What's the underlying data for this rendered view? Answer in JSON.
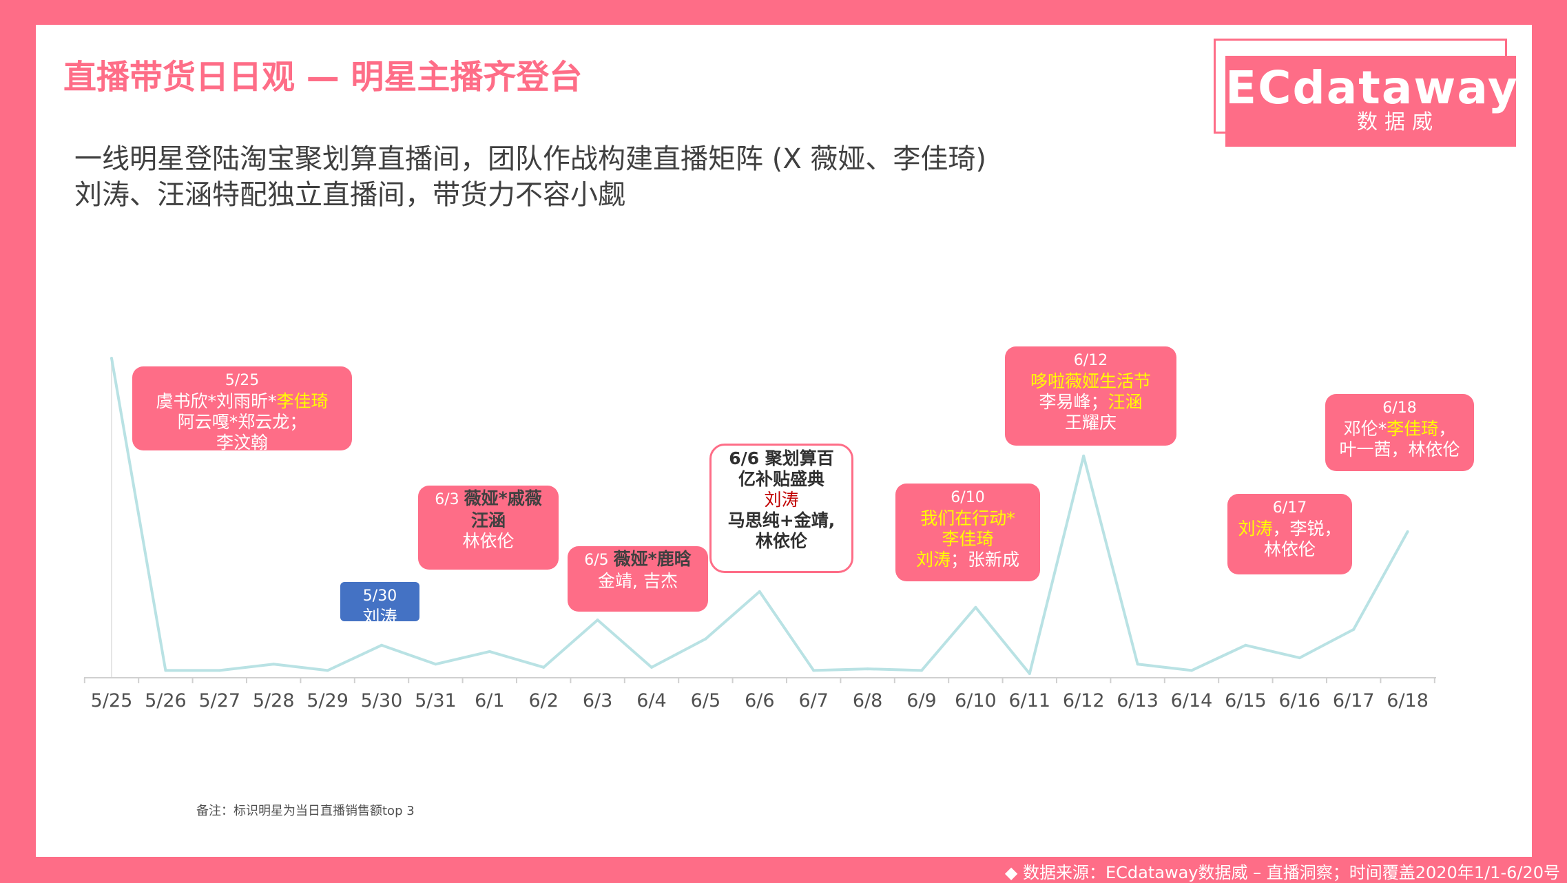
{
  "header": {
    "title": "直播带货日日观 — 明星主播齐登台",
    "subtitle_line1": "一线明星登陆淘宝聚划算直播间，团队作战构建直播矩阵 (X 薇娅、李佳琦)",
    "subtitle_line2": "刘涛、汪涵特配独立直播间，带货力不容小觑"
  },
  "logo": {
    "main": "ECdataway",
    "sub": "数据威"
  },
  "note": "备注：标识明星为当日直播销售额top 3",
  "footer": "◆ 数据来源：ECdataway数据威 – 直播洞察；时间覆盖2020年1/1-6/20号",
  "colors": {
    "accent": "#fe6d87",
    "line": "#b9e2e4",
    "highlight": "#ffff00",
    "blue_box": "#4472c4"
  },
  "chart_data": {
    "type": "line",
    "categories": [
      "5/25",
      "5/26",
      "5/27",
      "5/28",
      "5/29",
      "5/30",
      "5/31",
      "6/1",
      "6/2",
      "6/3",
      "6/4",
      "6/5",
      "6/6",
      "6/7",
      "6/8",
      "6/9",
      "6/10",
      "6/11",
      "6/12",
      "6/13",
      "6/14",
      "6/15",
      "6/16",
      "6/17",
      "6/18"
    ],
    "values": [
      100,
      1,
      1,
      3,
      1,
      9,
      3,
      7,
      2,
      17,
      2,
      11,
      26,
      1,
      1.5,
      1,
      21,
      0,
      69,
      3,
      1,
      9,
      5,
      14,
      45
    ],
    "grid": false,
    "legend": "none",
    "annotations": [
      {
        "date": "5/25",
        "style": "pink",
        "lines": [
          [
            {
              "t": "5/25",
              "c": "d"
            }
          ],
          [
            {
              "t": "虞书欣*刘雨昕*"
            },
            {
              "t": "李佳琦",
              "c": "hl"
            }
          ],
          [
            {
              "t": "阿云嘎*郑云龙；"
            }
          ],
          [
            {
              "t": "李汶翰"
            }
          ]
        ]
      },
      {
        "date": "5/30",
        "style": "blue",
        "lines": [
          [
            {
              "t": "5/30",
              "c": "d"
            }
          ],
          [
            {
              "t": "刘涛"
            }
          ]
        ]
      },
      {
        "date": "6/3",
        "style": "pink",
        "lines": [
          [
            {
              "t": "6/3 ",
              "c": "d"
            },
            {
              "t": "薇娅*戚薇",
              "c": "b"
            }
          ],
          [
            {
              "t": "汪涵",
              "c": "b"
            }
          ],
          [
            {
              "t": "林依伦"
            }
          ]
        ]
      },
      {
        "date": "6/5",
        "style": "pink",
        "lines": [
          [
            {
              "t": "6/5 ",
              "c": "d"
            },
            {
              "t": "薇娅*鹿晗",
              "c": "b"
            }
          ],
          [
            {
              "t": "金靖, 吉杰"
            }
          ]
        ]
      },
      {
        "date": "6/6",
        "style": "white",
        "lines": [
          [
            {
              "t": "6/6 聚划算百",
              "c": "b"
            }
          ],
          [
            {
              "t": "亿补贴盛典",
              "c": "b"
            }
          ],
          [
            {
              "t": "刘涛",
              "c": "hl"
            }
          ],
          [
            {
              "t": "马思纯+金靖,",
              "c": "b"
            }
          ],
          [
            {
              "t": "林依伦",
              "c": "b"
            }
          ]
        ]
      },
      {
        "date": "6/10",
        "style": "pink",
        "lines": [
          [
            {
              "t": "6/10",
              "c": "d"
            }
          ],
          [
            {
              "t": "我们在行动*",
              "c": "hl"
            }
          ],
          [
            {
              "t": "李佳琦",
              "c": "hl"
            }
          ],
          [
            {
              "t": "刘涛",
              "c": "hl"
            },
            {
              "t": "；张新成"
            }
          ]
        ]
      },
      {
        "date": "6/12",
        "style": "pink",
        "lines": [
          [
            {
              "t": "6/12",
              "c": "d"
            }
          ],
          [
            {
              "t": "哆啦薇娅生活节",
              "c": "hl"
            }
          ],
          [
            {
              "t": "李易峰；"
            },
            {
              "t": "汪涵",
              "c": "hl"
            }
          ],
          [
            {
              "t": "王耀庆"
            }
          ]
        ]
      },
      {
        "date": "6/17",
        "style": "pink",
        "lines": [
          [
            {
              "t": "6/17",
              "c": "d"
            }
          ],
          [
            {
              "t": "刘涛",
              "c": "hl"
            },
            {
              "t": "，李锐，"
            }
          ],
          [
            {
              "t": "林依伦"
            }
          ]
        ]
      },
      {
        "date": "6/18",
        "style": "pink",
        "lines": [
          [
            {
              "t": "6/18",
              "c": "d"
            }
          ],
          [
            {
              "t": "邓伦*"
            },
            {
              "t": "李佳琦",
              "c": "hl"
            },
            {
              "t": "，"
            }
          ],
          [
            {
              "t": "叶一茜，林依伦"
            }
          ]
        ]
      }
    ]
  }
}
